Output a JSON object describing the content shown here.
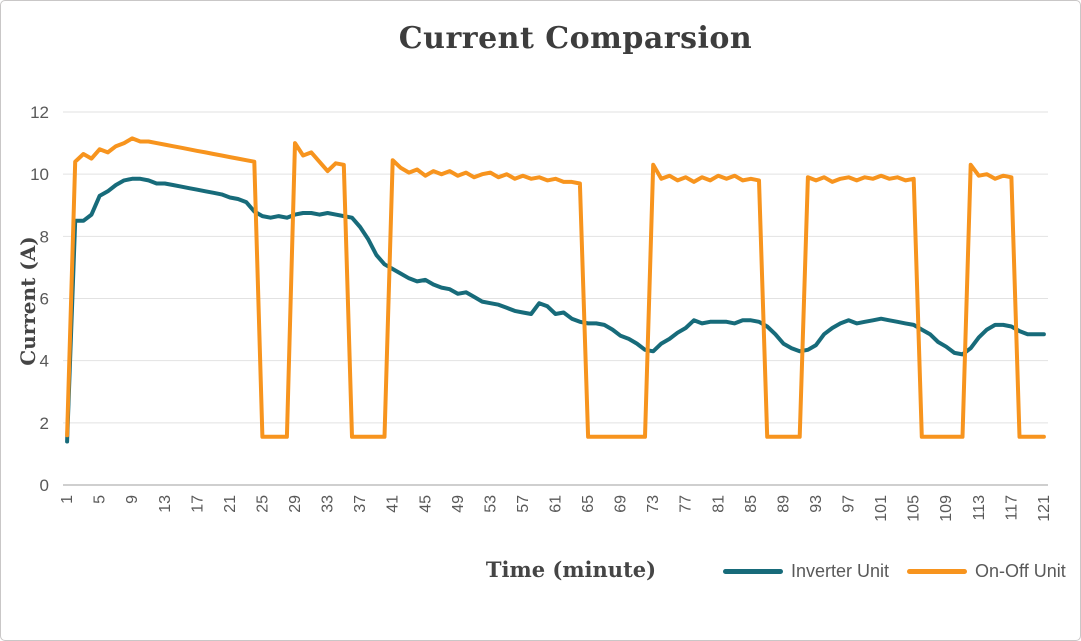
{
  "chart_data": {
    "type": "line",
    "title": "Current Comparsion",
    "xlabel": "Time (minute)",
    "ylabel": "Current (A)",
    "ylim": [
      0,
      12
    ],
    "y_ticks": [
      0,
      2,
      4,
      6,
      8,
      10,
      12
    ],
    "x_ticks": [
      1,
      5,
      9,
      13,
      17,
      21,
      25,
      29,
      33,
      37,
      41,
      45,
      49,
      53,
      57,
      61,
      65,
      69,
      73,
      77,
      81,
      85,
      89,
      93,
      97,
      101,
      105,
      109,
      113,
      117,
      121
    ],
    "x_range": [
      1,
      121
    ],
    "grid": "horizontal",
    "legend_position": "bottom-right",
    "colors": {
      "gridline": "#e2e2e2",
      "axis_line": "#bfbfbf",
      "tick_text": "#595959",
      "title_text": "#3d3d3d"
    },
    "series": [
      {
        "name": "Inverter Unit",
        "color": "#176b7a",
        "values": [
          1.4,
          8.5,
          8.5,
          8.7,
          9.3,
          9.45,
          9.65,
          9.8,
          9.85,
          9.85,
          9.8,
          9.7,
          9.7,
          9.65,
          9.6,
          9.55,
          9.5,
          9.45,
          9.4,
          9.35,
          9.25,
          9.2,
          9.1,
          8.8,
          8.65,
          8.6,
          8.65,
          8.6,
          8.7,
          8.75,
          8.75,
          8.7,
          8.75,
          8.7,
          8.65,
          8.6,
          8.3,
          7.9,
          7.4,
          7.1,
          6.95,
          6.8,
          6.65,
          6.55,
          6.6,
          6.45,
          6.35,
          6.3,
          6.15,
          6.2,
          6.05,
          5.9,
          5.85,
          5.8,
          5.7,
          5.6,
          5.55,
          5.5,
          5.85,
          5.75,
          5.5,
          5.55,
          5.35,
          5.25,
          5.2,
          5.2,
          5.15,
          5.0,
          4.8,
          4.7,
          4.55,
          4.35,
          4.3,
          4.55,
          4.7,
          4.9,
          5.05,
          5.3,
          5.2,
          5.25,
          5.25,
          5.25,
          5.2,
          5.3,
          5.3,
          5.25,
          5.1,
          4.85,
          4.55,
          4.4,
          4.3,
          4.35,
          4.5,
          4.85,
          5.05,
          5.2,
          5.3,
          5.2,
          5.25,
          5.3,
          5.35,
          5.3,
          5.25,
          5.2,
          5.15,
          5.0,
          4.85,
          4.6,
          4.45,
          4.25,
          4.2,
          4.4,
          4.75,
          5.0,
          5.15,
          5.15,
          5.1,
          4.95,
          4.85,
          4.85,
          4.85
        ]
      },
      {
        "name": "On-Off Unit",
        "color": "#f7941e",
        "values": [
          1.6,
          10.4,
          10.65,
          10.5,
          10.8,
          10.7,
          10.9,
          11.0,
          11.15,
          11.05,
          11.05,
          11.0,
          10.95,
          10.9,
          10.85,
          10.8,
          10.75,
          10.7,
          10.65,
          10.6,
          10.55,
          10.5,
          10.45,
          10.4,
          1.55,
          1.55,
          1.55,
          1.55,
          11.0,
          10.6,
          10.7,
          10.4,
          10.1,
          10.35,
          10.3,
          1.55,
          1.55,
          1.55,
          1.55,
          1.55,
          10.45,
          10.2,
          10.05,
          10.15,
          9.95,
          10.1,
          10.0,
          10.1,
          9.95,
          10.05,
          9.9,
          10.0,
          10.05,
          9.9,
          10.0,
          9.85,
          9.95,
          9.85,
          9.9,
          9.8,
          9.85,
          9.75,
          9.75,
          9.7,
          1.55,
          1.55,
          1.55,
          1.55,
          1.55,
          1.55,
          1.55,
          1.55,
          10.3,
          9.85,
          9.95,
          9.8,
          9.9,
          9.75,
          9.9,
          9.8,
          9.95,
          9.85,
          9.95,
          9.8,
          9.85,
          9.8,
          1.55,
          1.55,
          1.55,
          1.55,
          1.55,
          9.9,
          9.8,
          9.9,
          9.75,
          9.85,
          9.9,
          9.8,
          9.9,
          9.85,
          9.95,
          9.85,
          9.9,
          9.8,
          9.85,
          1.55,
          1.55,
          1.55,
          1.55,
          1.55,
          1.55,
          10.3,
          9.95,
          10.0,
          9.85,
          9.95,
          9.9,
          1.55,
          1.55,
          1.55,
          1.55
        ]
      }
    ]
  }
}
